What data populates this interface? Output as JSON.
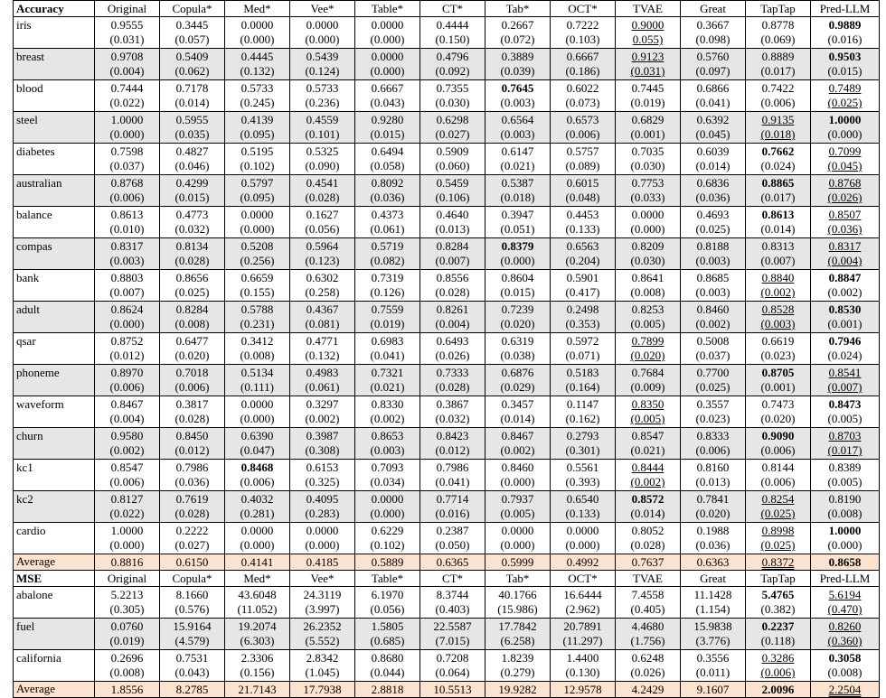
{
  "columns": [
    "Original",
    "Copula*",
    "Med*",
    "Vee*",
    "Table*",
    "CT*",
    "Tab*",
    "OCT*",
    "TVAE",
    "Great",
    "TapTap",
    "Pred-LLM"
  ],
  "sections": [
    {
      "label": "Accuracy",
      "rows": [
        {
          "name": "iris",
          "shade": false,
          "vals": [
            "0.9555",
            "0.3445",
            "0.0000",
            "0.0000",
            "0.0000",
            "0.4444",
            "0.2667",
            "0.7222",
            "0.9000",
            "0.3667",
            "0.8778",
            "0.9889"
          ],
          "stds": [
            "(0.031)",
            "(0.057)",
            "(0.000)",
            "(0.000)",
            "(0.000)",
            "(0.150)",
            "(0.072)",
            "(0.103)",
            "0.055)",
            "(0.098)",
            "(0.069)",
            "(0.016)"
          ],
          "bold": [
            11
          ],
          "under": [
            8
          ]
        },
        {
          "name": "breast",
          "shade": true,
          "vals": [
            "0.9708",
            "0.5409",
            "0.4445",
            "0.5439",
            "0.0000",
            "0.4796",
            "0.3889",
            "0.6667",
            "0.9123",
            "0.5760",
            "0.8889",
            "0.9503"
          ],
          "stds": [
            "(0.004)",
            "(0.062)",
            "(0.132)",
            "(0.124)",
            "(0.000)",
            "(0.092)",
            "(0.039)",
            "(0.186)",
            "(0.031)",
            "(0.097)",
            "(0.017)",
            "(0.015)"
          ],
          "bold": [
            11
          ],
          "under": [
            8
          ]
        },
        {
          "name": "blood",
          "shade": false,
          "vals": [
            "0.7444",
            "0.7178",
            "0.5733",
            "0.5733",
            "0.6667",
            "0.7355",
            "0.7645",
            "0.6022",
            "0.7445",
            "0.6866",
            "0.7422",
            "0.7489"
          ],
          "stds": [
            "(0.022)",
            "(0.014)",
            "(0.245)",
            "(0.236)",
            "(0.043)",
            "(0.030)",
            "(0.003)",
            "(0.073)",
            "(0.019)",
            "(0.041)",
            "(0.006)",
            "(0.025)"
          ],
          "bold": [
            6
          ],
          "under": [
            11
          ]
        },
        {
          "name": "steel",
          "shade": true,
          "vals": [
            "1.0000",
            "0.5955",
            "0.4139",
            "0.4559",
            "0.9280",
            "0.6298",
            "0.6564",
            "0.6573",
            "0.6829",
            "0.6392",
            "0.9135",
            "1.0000"
          ],
          "stds": [
            "(0.000)",
            "(0.035)",
            "(0.095)",
            "(0.101)",
            "(0.015)",
            "(0.027)",
            "(0.003)",
            "(0.006)",
            "(0.001)",
            "(0.045)",
            "(0.018)",
            "(0.000)"
          ],
          "bold": [
            11
          ],
          "under": [
            10
          ]
        },
        {
          "name": "diabetes",
          "shade": false,
          "vals": [
            "0.7598",
            "0.4827",
            "0.5195",
            "0.5325",
            "0.6494",
            "0.5909",
            "0.6147",
            "0.5757",
            "0.7035",
            "0.6039",
            "0.7662",
            "0.7099"
          ],
          "stds": [
            "(0.037)",
            "(0.046)",
            "(0.102)",
            "(0.090)",
            "(0.058)",
            "(0.060)",
            "(0.021)",
            "(0.089)",
            "(0.030)",
            "(0.014)",
            "(0.024)",
            "(0.045)"
          ],
          "bold": [
            10
          ],
          "under": [
            11
          ]
        },
        {
          "name": "australian",
          "shade": true,
          "vals": [
            "0.8768",
            "0.4299",
            "0.5797",
            "0.4541",
            "0.8092",
            "0.5459",
            "0.5387",
            "0.6015",
            "0.7753",
            "0.6836",
            "0.8865",
            "0.8768"
          ],
          "stds": [
            "(0.006)",
            "(0.015)",
            "(0.095)",
            "(0.028)",
            "(0.036)",
            "(0.106)",
            "(0.018)",
            "(0.048)",
            "(0.033)",
            "(0.036)",
            "(0.017)",
            "(0.026)"
          ],
          "bold": [
            10
          ],
          "under": [
            11
          ]
        },
        {
          "name": "balance",
          "shade": false,
          "vals": [
            "0.8613",
            "0.4773",
            "0.0000",
            "0.1627",
            "0.4373",
            "0.4640",
            "0.3947",
            "0.4453",
            "0.0000",
            "0.4693",
            "0.8613",
            "0.8507"
          ],
          "stds": [
            "(0.010)",
            "(0.032)",
            "(0.000)",
            "(0.056)",
            "(0.061)",
            "(0.013)",
            "(0.051)",
            "(0.133)",
            "(0.000)",
            "(0.025)",
            "(0.014)",
            "(0.036)"
          ],
          "bold": [
            10
          ],
          "under": [
            11
          ]
        },
        {
          "name": "compas",
          "shade": true,
          "vals": [
            "0.8317",
            "0.8134",
            "0.5208",
            "0.5964",
            "0.5719",
            "0.8284",
            "0.8379",
            "0.6563",
            "0.8209",
            "0.8188",
            "0.8313",
            "0.8317"
          ],
          "stds": [
            "(0.003)",
            "(0.028)",
            "(0.256)",
            "(0.123)",
            "(0.082)",
            "(0.007)",
            "(0.000)",
            "(0.204)",
            "(0.030)",
            "(0.003)",
            "(0.007)",
            "(0.004)"
          ],
          "bold": [
            6
          ],
          "under": [
            11
          ]
        },
        {
          "name": "bank",
          "shade": false,
          "vals": [
            "0.8803",
            "0.8656",
            "0.6659",
            "0.6302",
            "0.7319",
            "0.8556",
            "0.8604",
            "0.5901",
            "0.8641",
            "0.8685",
            "0.8840",
            "0.8847"
          ],
          "stds": [
            "(0.007)",
            "(0.025)",
            "(0.155)",
            "(0.258)",
            "(0.126)",
            "(0.028)",
            "(0.015)",
            "(0.417)",
            "(0.008)",
            "(0.003)",
            "(0.002)",
            "(0.002)"
          ],
          "bold": [
            11
          ],
          "under": [
            10
          ]
        },
        {
          "name": "adult",
          "shade": true,
          "vals": [
            "0.8624",
            "0.8284",
            "0.5788",
            "0.4367",
            "0.7559",
            "0.8261",
            "0.7239",
            "0.2498",
            "0.8253",
            "0.8460",
            "0.8528",
            "0.8530"
          ],
          "stds": [
            "(0.000)",
            "(0.008)",
            "(0.231)",
            "(0.081)",
            "(0.019)",
            "(0.004)",
            "(0.020)",
            "(0.353)",
            "(0.005)",
            "(0.002)",
            "(0.003)",
            "(0.001)"
          ],
          "bold": [
            11
          ],
          "under": [
            10
          ]
        },
        {
          "name": "qsar",
          "shade": false,
          "vals": [
            "0.8752",
            "0.6477",
            "0.3412",
            "0.4771",
            "0.6983",
            "0.6493",
            "0.6319",
            "0.5972",
            "0.7899",
            "0.5008",
            "0.6619",
            "0.7946"
          ],
          "stds": [
            "(0.012)",
            "(0.020)",
            "(0.008)",
            "(0.132)",
            "(0.041)",
            "(0.026)",
            "(0.038)",
            "(0.071)",
            "(0.020)",
            "(0.037)",
            "(0.023)",
            "(0.024)"
          ],
          "bold": [
            11
          ],
          "under": [
            8
          ]
        },
        {
          "name": "phoneme",
          "shade": true,
          "vals": [
            "0.8970",
            "0.7018",
            "0.5134",
            "0.4983",
            "0.7321",
            "0.7333",
            "0.6876",
            "0.5183",
            "0.7684",
            "0.7700",
            "0.8705",
            "0.8541"
          ],
          "stds": [
            "(0.006)",
            "(0.006)",
            "(0.111)",
            "(0.061)",
            "(0.021)",
            "(0.028)",
            "(0.029)",
            "(0.164)",
            "(0.009)",
            "(0.025)",
            "(0.001)",
            "(0.007)"
          ],
          "bold": [
            10
          ],
          "under": [
            11
          ]
        },
        {
          "name": "waveform",
          "shade": false,
          "vals": [
            "0.8467",
            "0.3817",
            "0.0000",
            "0.3297",
            "0.8330",
            "0.3867",
            "0.3457",
            "0.1147",
            "0.8350",
            "0.3557",
            "0.7473",
            "0.8473"
          ],
          "stds": [
            "(0.004)",
            "(0.028)",
            "(0.000)",
            "(0.002)",
            "(0.002)",
            "(0.032)",
            "(0.014)",
            "(0.162)",
            "(0.005)",
            "(0.023)",
            "(0.020)",
            "(0.005)"
          ],
          "bold": [
            11
          ],
          "under": [
            8
          ]
        },
        {
          "name": "churn",
          "shade": true,
          "vals": [
            "0.9580",
            "0.8450",
            "0.6390",
            "0.3987",
            "0.8653",
            "0.8423",
            "0.8467",
            "0.2793",
            "0.8547",
            "0.8333",
            "0.9090",
            "0.8703"
          ],
          "stds": [
            "(0.002)",
            "(0.012)",
            "(0.047)",
            "(0.308)",
            "(0.003)",
            "(0.012)",
            "(0.002)",
            "(0.301)",
            "(0.021)",
            "(0.006)",
            "(0.006)",
            "(0.017)"
          ],
          "bold": [
            10
          ],
          "under": [
            11
          ]
        },
        {
          "name": "kc1",
          "shade": false,
          "vals": [
            "0.8547",
            "0.7986",
            "0.8468",
            "0.6153",
            "0.7093",
            "0.7986",
            "0.8460",
            "0.5561",
            "0.8444",
            "0.8160",
            "0.8144",
            "0.8389"
          ],
          "stds": [
            "(0.006)",
            "(0.036)",
            "(0.006)",
            "(0.325)",
            "(0.034)",
            "(0.041)",
            "(0.000)",
            "(0.393)",
            "(0.002)",
            "(0.013)",
            "(0.006)",
            "(0.005)"
          ],
          "bold": [
            2
          ],
          "under": [
            8
          ]
        },
        {
          "name": "kc2",
          "shade": true,
          "vals": [
            "0.8127",
            "0.7619",
            "0.4032",
            "0.4095",
            "0.0000",
            "0.7714",
            "0.7937",
            "0.6540",
            "0.8572",
            "0.7841",
            "0.8254",
            "0.8190"
          ],
          "stds": [
            "(0.022)",
            "(0.028)",
            "(0.281)",
            "(0.283)",
            "(0.000)",
            "(0.016)",
            "(0.005)",
            "(0.133)",
            "(0.014)",
            "(0.020)",
            "(0.025)",
            "(0.008)"
          ],
          "bold": [
            8
          ],
          "under": [
            10
          ]
        },
        {
          "name": "cardio",
          "shade": false,
          "vals": [
            "1.0000",
            "0.2222",
            "0.0000",
            "0.0000",
            "0.6229",
            "0.2387",
            "0.0000",
            "0.0000",
            "0.8052",
            "0.1988",
            "0.8998",
            "1.0000"
          ],
          "stds": [
            "(0.000)",
            "(0.027)",
            "(0.000)",
            "(0.000)",
            "(0.102)",
            "(0.050)",
            "(0.000)",
            "(0.000)",
            "(0.028)",
            "(0.036)",
            "(0.025)",
            "(0.000)"
          ],
          "bold": [
            11
          ],
          "under": [
            10
          ]
        }
      ],
      "average": {
        "name": "Average",
        "vals": [
          "0.8816",
          "0.6150",
          "0.4141",
          "0.4185",
          "0.5889",
          "0.6365",
          "0.5999",
          "0.4992",
          "0.7637",
          "0.6363",
          "0.8372",
          "0.8658"
        ],
        "bold": [
          11
        ],
        "under": [
          10
        ]
      }
    },
    {
      "label": "MSE",
      "rows": [
        {
          "name": "abalone",
          "shade": false,
          "vals": [
            "5.2213",
            "8.1660",
            "43.6048",
            "24.3119",
            "6.1970",
            "8.3744",
            "40.1766",
            "16.6444",
            "7.4558",
            "11.1428",
            "5.4765",
            "5.6194"
          ],
          "stds": [
            "(0.305)",
            "(0.576)",
            "(11.052)",
            "(3.997)",
            "(0.056)",
            "(0.403)",
            "(15.986)",
            "(2.962)",
            "(0.405)",
            "(1.154)",
            "(0.382)",
            "(0.470)"
          ],
          "bold": [
            10
          ],
          "under": [
            11
          ]
        },
        {
          "name": "fuel",
          "shade": true,
          "vals": [
            "0.0760",
            "15.9164",
            "19.2074",
            "26.2352",
            "1.5805",
            "22.5587",
            "17.7842",
            "20.7891",
            "4.4680",
            "15.9838",
            "0.2237",
            "0.8260"
          ],
          "stds": [
            "(0.019)",
            "(4.579)",
            "(6.303)",
            "(5.552)",
            "(0.685)",
            "(7.015)",
            "(6.258)",
            "(11.297)",
            "(1.756)",
            "(3.776)",
            "(0.118)",
            "(0.360)"
          ],
          "bold": [
            10
          ],
          "under": [
            11
          ]
        },
        {
          "name": "california",
          "shade": false,
          "vals": [
            "0.2696",
            "0.7531",
            "2.3306",
            "2.8342",
            "0.8680",
            "0.7208",
            "1.8239",
            "1.4400",
            "0.6248",
            "0.3556",
            "0.3286",
            "0.3058"
          ],
          "stds": [
            "(0.008)",
            "(0.043)",
            "(0.156)",
            "(1.045)",
            "(0.044)",
            "(0.064)",
            "(0.279)",
            "(0.130)",
            "(0.026)",
            "(0.011)",
            "(0.006)",
            "(0.008)"
          ],
          "bold": [
            11
          ],
          "under": [
            10
          ]
        }
      ],
      "average": {
        "name": "Average",
        "vals": [
          "1.8556",
          "8.2785",
          "21.7143",
          "17.7938",
          "2.8818",
          "10.5513",
          "19.9282",
          "12.9578",
          "4.2429",
          "9.1607",
          "2.0096",
          "2.2504"
        ],
        "bold": [
          10
        ],
        "under": [
          11
        ]
      }
    }
  ]
}
